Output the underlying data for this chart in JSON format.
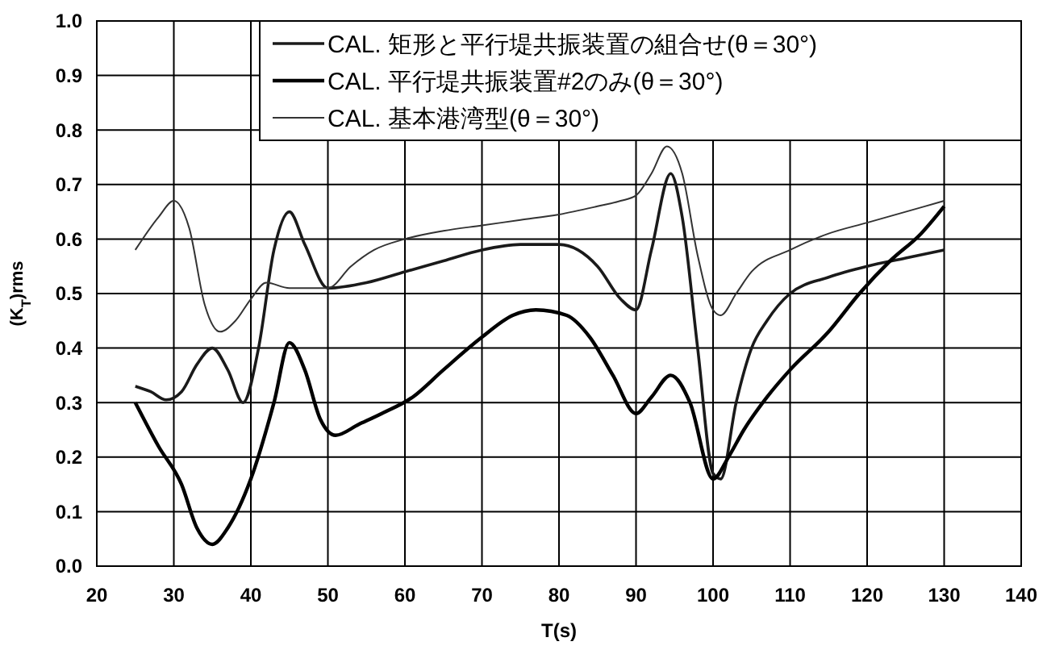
{
  "chart_data": {
    "type": "line",
    "xlabel": "T(s)",
    "ylabel": "(K$_{T}$)rms",
    "xlim": [
      20,
      140
    ],
    "xticks": [
      20,
      30,
      40,
      50,
      60,
      70,
      80,
      90,
      100,
      110,
      120,
      130,
      140
    ],
    "ylim": [
      0,
      1
    ],
    "yticks": [
      {
        "value": 0,
        "label": "0.0"
      },
      0.1,
      0.2,
      0.3,
      0.4,
      0.5,
      0.6,
      0.7,
      0.8,
      0.9,
      {
        "value": 1,
        "label": "1.0"
      }
    ],
    "grid": true,
    "legend": "top right",
    "marker": "none",
    "line_style": "solid",
    "series": [
      {
        "name": "CAL. 矩形と平行堤共振装置の組合せ(θ＝30°)",
        "color": "#1a1a1a",
        "x": [
          25,
          27,
          29,
          31,
          33,
          35,
          37,
          39,
          41,
          43,
          45,
          47,
          50,
          55,
          60,
          65,
          70,
          75,
          80,
          85,
          88,
          90,
          92,
          94.5,
          96,
          98,
          100,
          101,
          103,
          105,
          107,
          110,
          115,
          120,
          125,
          130
        ],
        "values": [
          0.33,
          0.32,
          0.305,
          0.32,
          0.37,
          0.4,
          0.36,
          0.3,
          0.4,
          0.58,
          0.65,
          0.59,
          0.51,
          0.52,
          0.54,
          0.56,
          0.58,
          0.59,
          0.59,
          0.55,
          0.49,
          0.47,
          0.58,
          0.72,
          0.64,
          0.4,
          0.17,
          0.16,
          0.3,
          0.4,
          0.45,
          0.5,
          0.53,
          0.55,
          0.565,
          0.58
        ]
      },
      {
        "name": "CAL. 平行堤共振装置#2のみ(θ＝30°)",
        "color": "#000000",
        "x": [
          25,
          28,
          31,
          33,
          35,
          37,
          40,
          43,
          45,
          47,
          49,
          51,
          54,
          57,
          61,
          65,
          70,
          74,
          77,
          81,
          84,
          87,
          90,
          92,
          94.5,
          97,
          100,
          102,
          104,
          107,
          110,
          115,
          119,
          123,
          127,
          130
        ],
        "values": [
          0.3,
          0.22,
          0.15,
          0.07,
          0.04,
          0.07,
          0.16,
          0.3,
          0.41,
          0.36,
          0.27,
          0.24,
          0.26,
          0.28,
          0.31,
          0.36,
          0.42,
          0.46,
          0.47,
          0.46,
          0.42,
          0.35,
          0.28,
          0.31,
          0.35,
          0.3,
          0.16,
          0.2,
          0.25,
          0.31,
          0.36,
          0.43,
          0.5,
          0.56,
          0.61,
          0.66
        ]
      },
      {
        "name": "CAL. 基本港湾型(θ＝30°)",
        "color": "#333333",
        "x": [
          25,
          28,
          30,
          32,
          34,
          36,
          38,
          40,
          42,
          45,
          48,
          50,
          53,
          56,
          60,
          65,
          70,
          75,
          80,
          85,
          88,
          90,
          92,
          94,
          96,
          98,
          100,
          101,
          103,
          105,
          110,
          115,
          120,
          125,
          130
        ],
        "values": [
          0.58,
          0.64,
          0.67,
          0.62,
          0.48,
          0.43,
          0.45,
          0.49,
          0.52,
          0.51,
          0.51,
          0.51,
          0.55,
          0.58,
          0.6,
          0.615,
          0.625,
          0.635,
          0.645,
          0.66,
          0.67,
          0.68,
          0.72,
          0.77,
          0.72,
          0.57,
          0.47,
          0.46,
          0.5,
          0.54,
          0.58,
          0.61,
          0.63,
          0.65,
          0.67
        ]
      }
    ]
  }
}
